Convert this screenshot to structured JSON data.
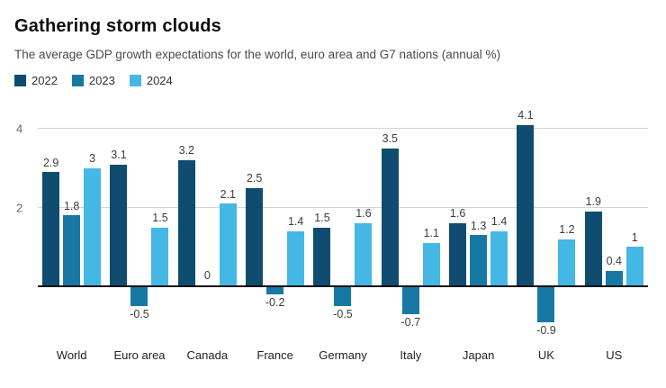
{
  "header": {
    "title": "Gathering storm clouds",
    "subtitle": "The average GDP growth expectations for the world, euro area and G7 nations (annual %)"
  },
  "chart_data": {
    "type": "bar",
    "title": "Gathering storm clouds",
    "subtitle": "The average GDP growth expectations for the world, euro area and G7 nations (annual %)",
    "categories": [
      "World",
      "Euro area",
      "Canada",
      "France",
      "Germany",
      "Italy",
      "Japan",
      "UK",
      "US"
    ],
    "series": [
      {
        "name": "2022",
        "color": "#0f4c70",
        "values": [
          2.9,
          3.1,
          3.2,
          2.5,
          1.5,
          3.5,
          1.6,
          4.1,
          1.9
        ]
      },
      {
        "name": "2023",
        "color": "#1779a3",
        "values": [
          1.8,
          -0.5,
          0,
          -0.2,
          -0.5,
          -0.7,
          1.3,
          -0.9,
          0.4
        ]
      },
      {
        "name": "2024",
        "color": "#45b7e5",
        "values": [
          3,
          1.5,
          2.1,
          1.4,
          1.6,
          1.1,
          1.4,
          1.2,
          1
        ]
      }
    ],
    "ylabel": "",
    "xlabel": "",
    "ylim": [
      -1.3,
      4.6
    ],
    "yticks": [
      2,
      4
    ],
    "zero_line": true,
    "grid": true,
    "legend_position": "top-left"
  }
}
